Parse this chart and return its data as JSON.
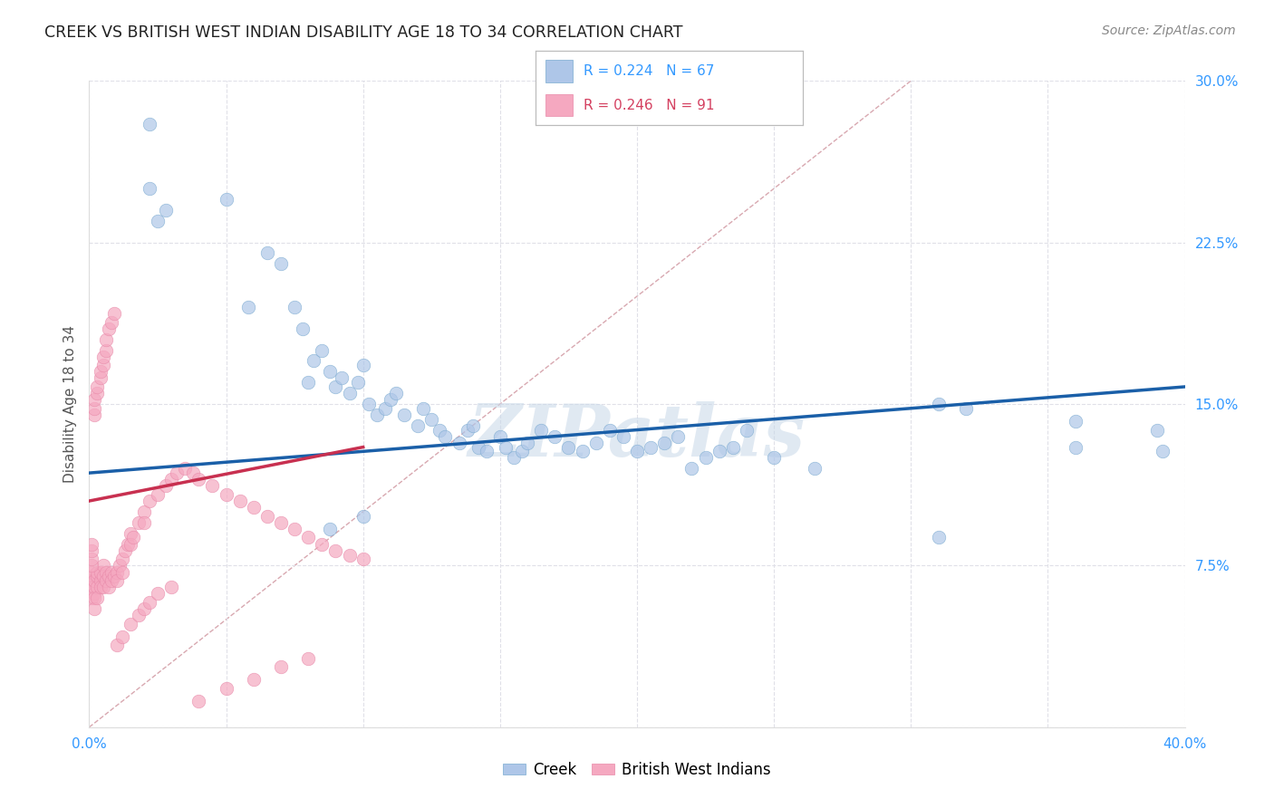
{
  "title": "CREEK VS BRITISH WEST INDIAN DISABILITY AGE 18 TO 34 CORRELATION CHART",
  "source": "Source: ZipAtlas.com",
  "ylabel": "Disability Age 18 to 34",
  "xlim": [
    0.0,
    0.4
  ],
  "ylim": [
    0.0,
    0.3
  ],
  "xticks": [
    0.0,
    0.05,
    0.1,
    0.15,
    0.2,
    0.25,
    0.3,
    0.35,
    0.4
  ],
  "yticks": [
    0.0,
    0.075,
    0.15,
    0.225,
    0.3
  ],
  "creek_color": "#aec6e8",
  "bwi_color": "#f5a8c0",
  "creek_edge_color": "#7aaad0",
  "bwi_edge_color": "#e888a8",
  "creek_line_color": "#1a5fa8",
  "bwi_line_color": "#c83050",
  "diag_line_color": "#d8a8b0",
  "creek_R": 0.224,
  "creek_N": 67,
  "bwi_R": 0.246,
  "bwi_N": 91,
  "creek_x": [
    0.022,
    0.022,
    0.025,
    0.028,
    0.05,
    0.058,
    0.065,
    0.07,
    0.075,
    0.078,
    0.08,
    0.082,
    0.085,
    0.088,
    0.09,
    0.092,
    0.095,
    0.098,
    0.1,
    0.102,
    0.105,
    0.108,
    0.11,
    0.112,
    0.115,
    0.12,
    0.122,
    0.125,
    0.128,
    0.13,
    0.135,
    0.138,
    0.14,
    0.142,
    0.145,
    0.15,
    0.152,
    0.155,
    0.158,
    0.16,
    0.165,
    0.17,
    0.175,
    0.18,
    0.185,
    0.19,
    0.195,
    0.2,
    0.205,
    0.21,
    0.215,
    0.22,
    0.225,
    0.23,
    0.235,
    0.24,
    0.25,
    0.265,
    0.31,
    0.32,
    0.36,
    0.36,
    0.39,
    0.392,
    0.31,
    0.088,
    0.1
  ],
  "creek_y": [
    0.28,
    0.25,
    0.235,
    0.24,
    0.245,
    0.195,
    0.22,
    0.215,
    0.195,
    0.185,
    0.16,
    0.17,
    0.175,
    0.165,
    0.158,
    0.162,
    0.155,
    0.16,
    0.168,
    0.15,
    0.145,
    0.148,
    0.152,
    0.155,
    0.145,
    0.14,
    0.148,
    0.143,
    0.138,
    0.135,
    0.132,
    0.138,
    0.14,
    0.13,
    0.128,
    0.135,
    0.13,
    0.125,
    0.128,
    0.132,
    0.138,
    0.135,
    0.13,
    0.128,
    0.132,
    0.138,
    0.135,
    0.128,
    0.13,
    0.132,
    0.135,
    0.12,
    0.125,
    0.128,
    0.13,
    0.138,
    0.125,
    0.12,
    0.15,
    0.148,
    0.142,
    0.13,
    0.138,
    0.128,
    0.088,
    0.092,
    0.098
  ],
  "bwi_x": [
    0.001,
    0.001,
    0.001,
    0.001,
    0.001,
    0.002,
    0.002,
    0.002,
    0.002,
    0.002,
    0.003,
    0.003,
    0.003,
    0.003,
    0.004,
    0.004,
    0.004,
    0.005,
    0.005,
    0.005,
    0.006,
    0.006,
    0.007,
    0.007,
    0.008,
    0.008,
    0.009,
    0.01,
    0.01,
    0.011,
    0.012,
    0.012,
    0.013,
    0.014,
    0.015,
    0.015,
    0.016,
    0.018,
    0.02,
    0.02,
    0.022,
    0.025,
    0.028,
    0.03,
    0.032,
    0.035,
    0.038,
    0.04,
    0.045,
    0.05,
    0.055,
    0.06,
    0.065,
    0.07,
    0.075,
    0.08,
    0.085,
    0.09,
    0.095,
    0.1,
    0.001,
    0.001,
    0.001,
    0.001,
    0.002,
    0.002,
    0.002,
    0.003,
    0.003,
    0.004,
    0.004,
    0.005,
    0.005,
    0.006,
    0.006,
    0.007,
    0.008,
    0.009,
    0.01,
    0.012,
    0.015,
    0.018,
    0.02,
    0.022,
    0.025,
    0.03,
    0.04,
    0.05,
    0.06,
    0.07,
    0.08
  ],
  "bwi_y": [
    0.068,
    0.07,
    0.072,
    0.065,
    0.06,
    0.062,
    0.065,
    0.068,
    0.06,
    0.055,
    0.07,
    0.072,
    0.065,
    0.06,
    0.068,
    0.072,
    0.065,
    0.075,
    0.07,
    0.065,
    0.072,
    0.068,
    0.07,
    0.065,
    0.072,
    0.068,
    0.07,
    0.072,
    0.068,
    0.075,
    0.078,
    0.072,
    0.082,
    0.085,
    0.09,
    0.085,
    0.088,
    0.095,
    0.1,
    0.095,
    0.105,
    0.108,
    0.112,
    0.115,
    0.118,
    0.12,
    0.118,
    0.115,
    0.112,
    0.108,
    0.105,
    0.102,
    0.098,
    0.095,
    0.092,
    0.088,
    0.085,
    0.082,
    0.08,
    0.078,
    0.075,
    0.078,
    0.082,
    0.085,
    0.145,
    0.148,
    0.152,
    0.155,
    0.158,
    0.162,
    0.165,
    0.168,
    0.172,
    0.175,
    0.18,
    0.185,
    0.188,
    0.192,
    0.038,
    0.042,
    0.048,
    0.052,
    0.055,
    0.058,
    0.062,
    0.065,
    0.012,
    0.018,
    0.022,
    0.028,
    0.032
  ],
  "watermark": "ZIPatlas",
  "background_color": "#ffffff",
  "grid_color": "#e0e0e8"
}
